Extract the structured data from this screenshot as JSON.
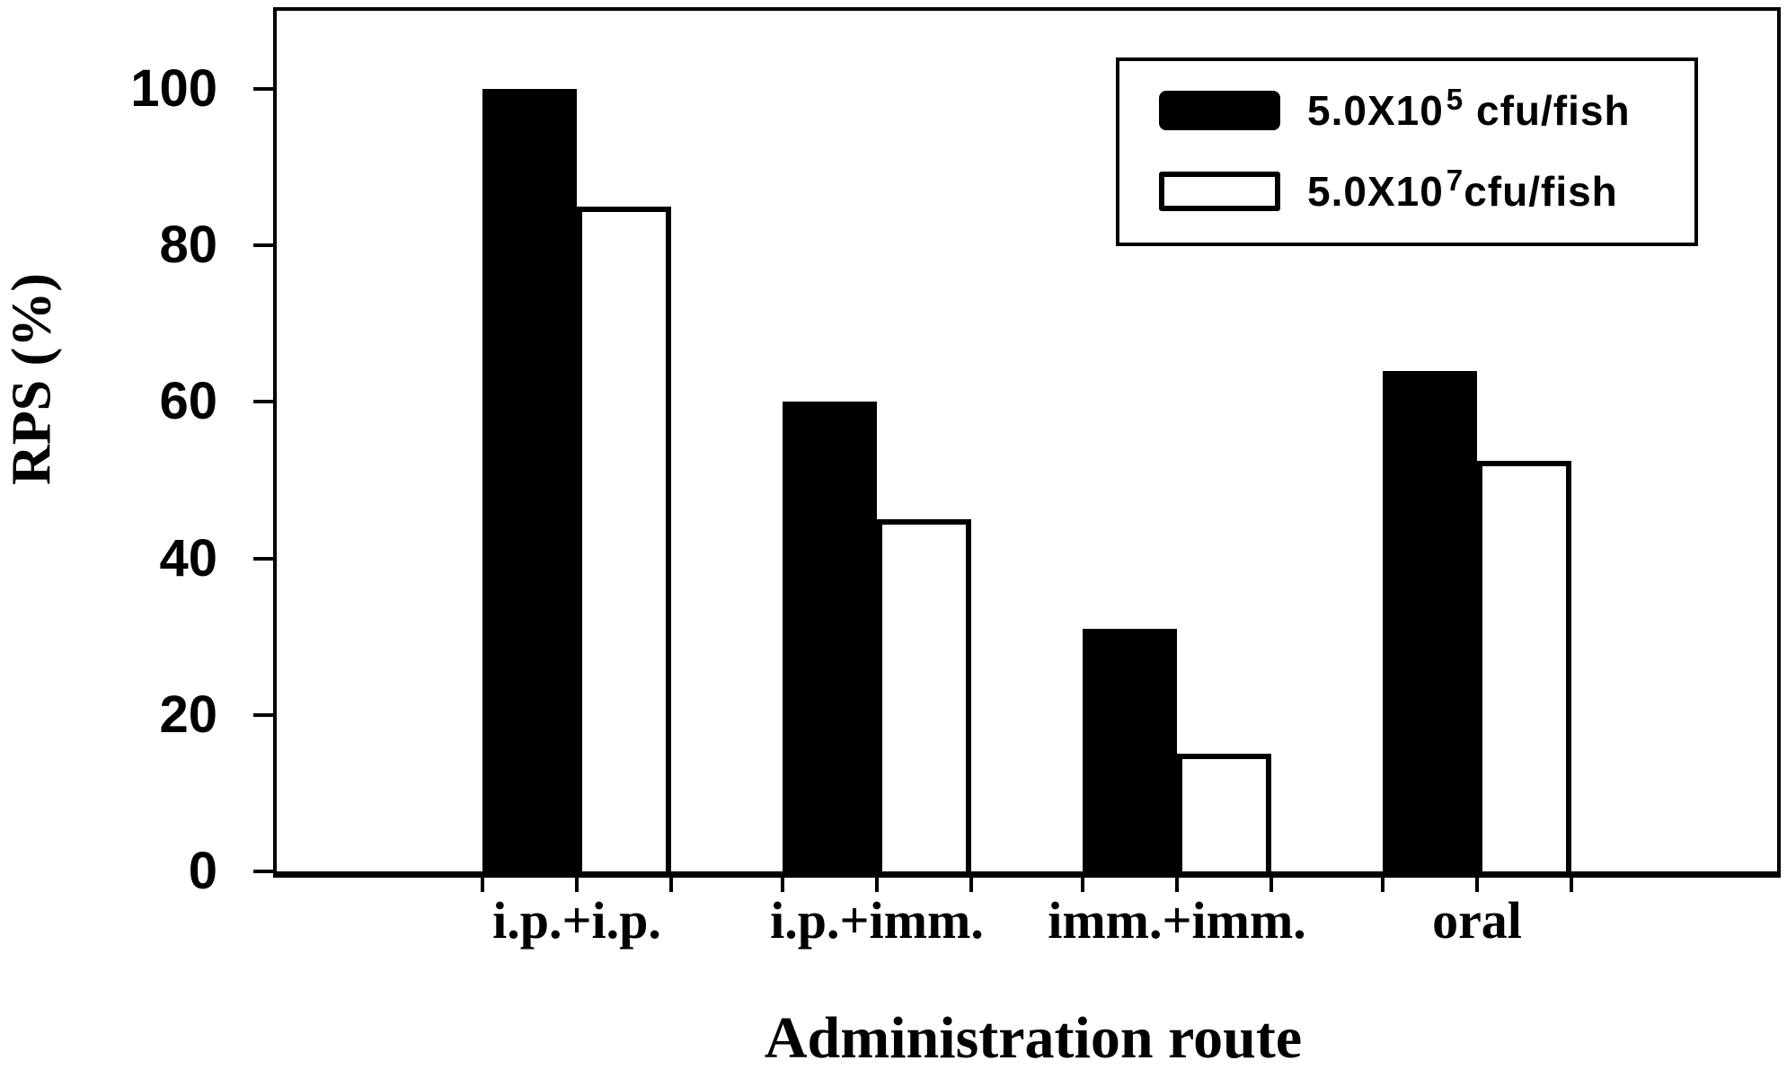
{
  "figure": {
    "ylabel": "RPS (%)",
    "xlabel": "Administration route"
  },
  "legend": {
    "position": "top-right",
    "items": [
      {
        "swatch": "black-filled",
        "label_base": "5.0X10",
        "label_sup": "5",
        "label_rest": " cfu/fish"
      },
      {
        "swatch": "white-outlined",
        "label_base": "5.0X10",
        "label_sup": "7",
        "label_rest": "cfu/fish"
      }
    ]
  },
  "chart_data": {
    "type": "bar",
    "title": "",
    "xlabel": "Administration route",
    "ylabel": "RPS (%)",
    "categories": [
      "i.p.+i.p.",
      "i.p.+imm.",
      "imm.+imm.",
      "oral"
    ],
    "series": [
      {
        "name": "5.0X10^5 cfu/fish",
        "fill": "#000000",
        "values": [
          100,
          60,
          31,
          64
        ]
      },
      {
        "name": "5.0X10^7 cfu/fish",
        "fill": "#ffffff",
        "values": [
          85,
          45,
          15,
          52.5
        ]
      }
    ],
    "yticks": [
      0,
      20,
      40,
      60,
      80,
      100
    ],
    "ylim": [
      0,
      110
    ],
    "grid": false,
    "legend_position": "top-right",
    "frame": "full-box"
  },
  "colors": {
    "foreground": "#000000",
    "background": "#ffffff"
  }
}
